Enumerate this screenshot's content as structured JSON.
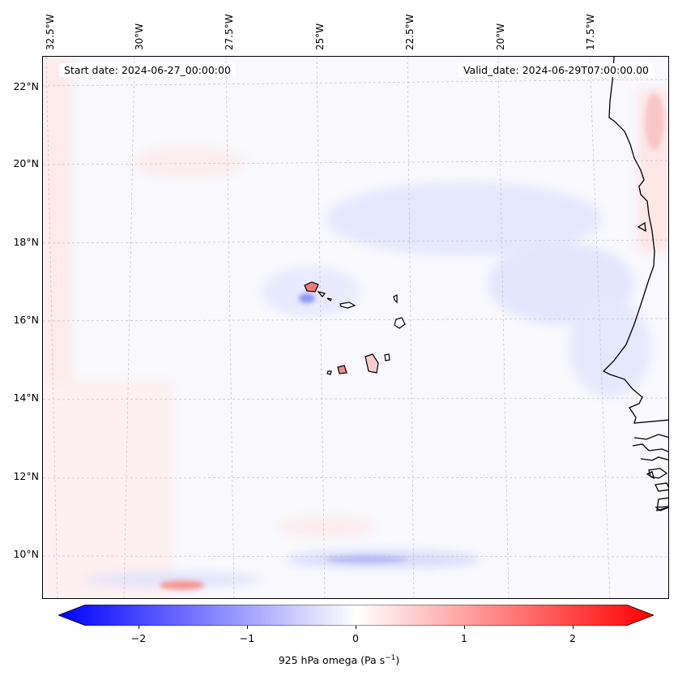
{
  "map": {
    "start_date": "Start date: 2024-06-27_00:00:00",
    "valid_date": "Valid_date: 2024-06-29T07:00:00.00",
    "lon_labels": [
      "32.5°W",
      "30°W",
      "27.5°W",
      "25°W",
      "22.5°W",
      "20°W",
      "17.5°W"
    ],
    "lat_labels": [
      "22°N",
      "20°N",
      "18°N",
      "16°N",
      "14°N",
      "12°N",
      "10°N"
    ],
    "gridlines": true
  },
  "colorbar": {
    "label": "925 hPa omega (Pa s",
    "label_sup": "−1",
    "label_end": ")",
    "ticks": [
      "−2",
      "−1",
      "0",
      "1",
      "2"
    ],
    "range": [
      -2.5,
      2.5
    ],
    "cmap": "bwr",
    "extend": "both",
    "neg_color": "#0000ff",
    "pos_color": "#ff0000"
  }
}
